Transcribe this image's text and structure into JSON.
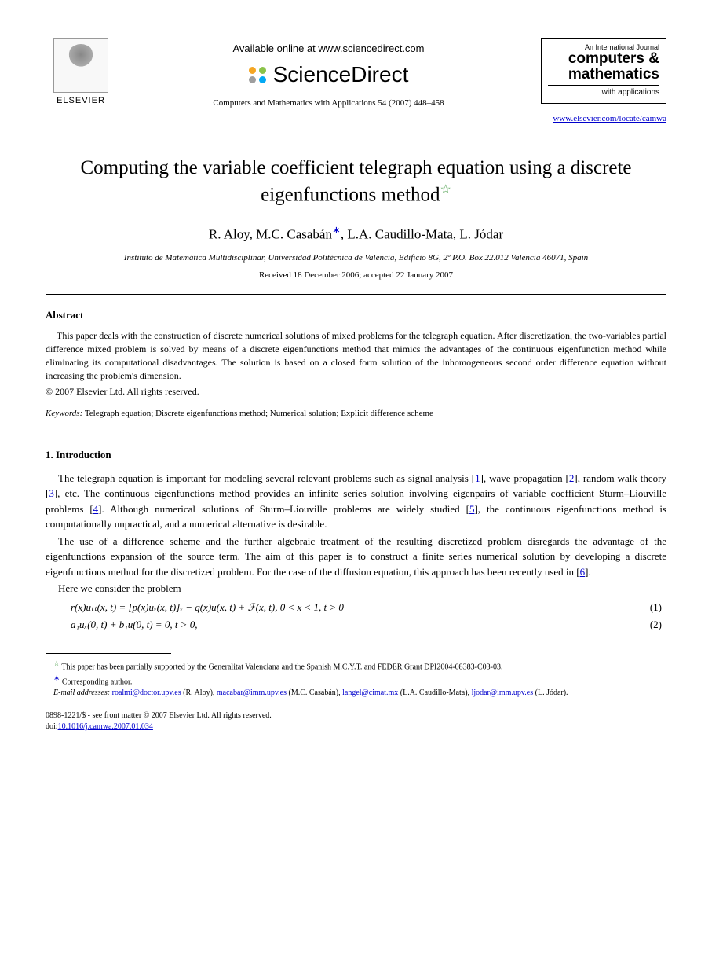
{
  "header": {
    "publisher_label": "ELSEVIER",
    "available_line": "Available online at www.sciencedirect.com",
    "sd_name": "ScienceDirect",
    "sd_dot_colors": [
      "#f5a623",
      "#8bc34a",
      "#9e9e9e",
      "#03a9f4"
    ],
    "citation": "Computers and Mathematics with Applications 54 (2007) 448–458",
    "journal_box": {
      "line1": "An International Journal",
      "line2": "computers &",
      "line3": "mathematics",
      "line4": "with applications"
    },
    "site_link": "www.elsevier.com/locate/camwa"
  },
  "title": "Computing the variable coefficient telegraph equation using a discrete eigenfunctions method",
  "title_star": "☆",
  "authors_html": "R. Aloy, M.C. Casabán",
  "authors_rest": ", L.A. Caudillo-Mata, L. Jódar",
  "affiliation": "Instituto de Matemática Multidisciplinar, Universidad Politécnica de Valencia, Edificio 8G, 2º P.O. Box 22.012 Valencia 46071, Spain",
  "dates": "Received 18 December 2006; accepted 22 January 2007",
  "abstract": {
    "heading": "Abstract",
    "body": "This paper deals with the construction of discrete numerical solutions of mixed problems for the telegraph equation. After discretization, the two-variables partial difference mixed problem is solved by means of a discrete eigenfunctions method that mimics the advantages of the continuous eigenfunction method while eliminating its computational disadvantages. The solution is based on a closed form solution of the inhomogeneous second order difference equation without increasing the problem's dimension.",
    "copyright": "© 2007 Elsevier Ltd. All rights reserved."
  },
  "keywords": {
    "label": "Keywords:",
    "text": " Telegraph equation; Discrete eigenfunctions method; Numerical solution; Explicit difference scheme"
  },
  "section1": {
    "heading": "1. Introduction",
    "p1_a": "The telegraph equation is important for modeling several relevant problems such as signal analysis [",
    "p1_b": "], wave propagation [",
    "p1_c": "], random walk theory [",
    "p1_d": "], etc. The continuous eigenfunctions method provides an infinite series solution involving eigenpairs of variable coefficient Sturm–Liouville problems [",
    "p1_e": "]. Although numerical solutions of Sturm–Liouville problems are widely studied [",
    "p1_f": "], the continuous eigenfunctions method is computationally unpractical, and a numerical alternative is desirable.",
    "refs": {
      "r1": "1",
      "r2": "2",
      "r3": "3",
      "r4": "4",
      "r5": "5",
      "r6": "6"
    },
    "p2_a": "The use of a difference scheme and the further algebraic treatment of the resulting discretized problem disregards the advantage of the eigenfunctions expansion of the source term. The aim of this paper is to construct a finite series numerical solution by developing a discrete eigenfunctions method for the discretized problem. For the case of the diffusion equation, this approach has been recently used in [",
    "p2_b": "].",
    "p3": "Here we consider the problem"
  },
  "equations": {
    "eq1": "r(x)uₜₜ(x, t) = [p(x)uₓ(x, t)]ₓ − q(x)u(x, t) + ℱ(x, t),    0 < x < 1, t > 0",
    "eq1_num": "(1)",
    "eq2": "a₁uₓ(0, t) + b₁u(0, t) = 0,    t > 0,",
    "eq2_num": "(2)"
  },
  "footnotes": {
    "f1": " This paper has been partially supported by the Generalitat Valenciana and the Spanish M.C.Y.T. and FEDER Grant DPI2004-08383-C03-03.",
    "f2": " Corresponding author.",
    "emails_label": "E-mail addresses:",
    "e1": "roalmi@doctor.upv.es",
    "e1_who": " (R. Aloy), ",
    "e2": "macabar@imm.upv.es",
    "e2_who": " (M.C. Casabán), ",
    "e3": "langel@cimat.mx",
    "e3_who": " (L.A. Caudillo-Mata), ",
    "e4": "ljodar@imm.upv.es",
    "e4_who": " (L. Jódar)."
  },
  "footer": {
    "line1": "0898-1221/$ - see front matter © 2007 Elsevier Ltd. All rights reserved.",
    "doi_label": "doi:",
    "doi": "10.1016/j.camwa.2007.01.034"
  },
  "colors": {
    "link": "#0000cc",
    "star": "#4a9d4a",
    "text": "#000000",
    "background": "#ffffff"
  }
}
